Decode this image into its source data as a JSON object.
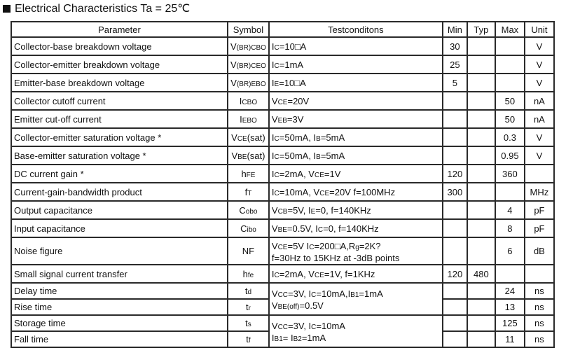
{
  "title": "Electrical Characteristics Ta = 25℃",
  "headers": [
    "Parameter",
    "Symbol",
    "Testconditons",
    "Min",
    "Typ",
    "Max",
    "Unit"
  ],
  "rows": [
    {
      "param": "Collector-base breakdown voltage",
      "sym": [
        [
          "V",
          0
        ],
        [
          "(BR)CBO",
          1
        ]
      ],
      "cond": [
        [
          [
            "I",
            0
          ],
          [
            "C",
            1
          ],
          [
            "=10□A",
            0
          ]
        ]
      ],
      "min": "30",
      "typ": "",
      "max": "",
      "unit": "V"
    },
    {
      "param": "Collector-emitter breakdown voltage",
      "sym": [
        [
          "V",
          0
        ],
        [
          "(BR)CEO",
          1
        ]
      ],
      "cond": [
        [
          [
            "I",
            0
          ],
          [
            "C",
            1
          ],
          [
            "=1mA",
            0
          ]
        ]
      ],
      "min": "25",
      "typ": "",
      "max": "",
      "unit": "V"
    },
    {
      "param": "Emitter-base breakdown voltage",
      "sym": [
        [
          "V",
          0
        ],
        [
          "(BR)EBO",
          1
        ]
      ],
      "cond": [
        [
          [
            "I",
            0
          ],
          [
            "E",
            1
          ],
          [
            "=10□A",
            0
          ]
        ]
      ],
      "min": "5",
      "typ": "",
      "max": "",
      "unit": "V"
    },
    {
      "param": "Collector cutoff current",
      "sym": [
        [
          "I",
          0
        ],
        [
          "CBO",
          1
        ]
      ],
      "cond": [
        [
          [
            "V",
            0
          ],
          [
            "CE",
            1
          ],
          [
            "=20V",
            0
          ]
        ]
      ],
      "min": "",
      "typ": "",
      "max": "50",
      "unit": "nA"
    },
    {
      "param": "Emitter cut-off current",
      "sym": [
        [
          "I",
          0
        ],
        [
          "EBO",
          1
        ]
      ],
      "cond": [
        [
          [
            "V",
            0
          ],
          [
            "EB",
            1
          ],
          [
            "=3V",
            0
          ]
        ]
      ],
      "min": "",
      "typ": "",
      "max": "50",
      "unit": "nA"
    },
    {
      "param": "Collector-emitter saturation voltage  *",
      "sym": [
        [
          "V",
          0
        ],
        [
          "CE",
          1
        ],
        [
          "(sat)",
          0
        ]
      ],
      "cond": [
        [
          [
            "I",
            0
          ],
          [
            "C",
            1
          ],
          [
            "=50mA, I",
            0
          ],
          [
            "B",
            1
          ],
          [
            "=5mA",
            0
          ]
        ]
      ],
      "min": "",
      "typ": "",
      "max": "0.3",
      "unit": "V"
    },
    {
      "param": "Base-emitter saturation voltage  *",
      "sym": [
        [
          "V",
          0
        ],
        [
          "BE",
          1
        ],
        [
          "(sat)",
          0
        ]
      ],
      "cond": [
        [
          [
            "I",
            0
          ],
          [
            "C",
            1
          ],
          [
            "=50mA, I",
            0
          ],
          [
            "B",
            1
          ],
          [
            "=5mA",
            0
          ]
        ]
      ],
      "min": "",
      "typ": "",
      "max": "0.95",
      "unit": "V"
    },
    {
      "param": "DC current gain  *",
      "sym": [
        [
          "h",
          0
        ],
        [
          "FE",
          1
        ]
      ],
      "cond": [
        [
          [
            " I",
            0
          ],
          [
            "C",
            1
          ],
          [
            "=2mA, V",
            0
          ],
          [
            "CE",
            1
          ],
          [
            "=1V",
            0
          ]
        ]
      ],
      "min": "120",
      "typ": "",
      "max": "360",
      "unit": ""
    },
    {
      "param": "Current-gain-bandwidth product",
      "sym": [
        [
          "f",
          0
        ],
        [
          "T",
          1
        ]
      ],
      "cond": [
        [
          [
            "I",
            0
          ],
          [
            "C",
            1
          ],
          [
            "=10mA, V",
            0
          ],
          [
            "CE",
            1
          ],
          [
            "=20V f=100MHz",
            0
          ]
        ]
      ],
      "min": "300",
      "typ": "",
      "max": "",
      "unit": "MHz"
    },
    {
      "param": "Output capacitance",
      "sym": [
        [
          "C",
          0
        ],
        [
          "obo",
          1
        ]
      ],
      "cond": [
        [
          [
            "V",
            0
          ],
          [
            "CB",
            1
          ],
          [
            "=5V, I",
            0
          ],
          [
            "E",
            1
          ],
          [
            "=0, f=140KHz",
            0
          ]
        ]
      ],
      "min": "",
      "typ": "",
      "max": "4",
      "unit": "pF"
    },
    {
      "param": "Input capacitance",
      "sym": [
        [
          "C",
          0
        ],
        [
          "ibo",
          1
        ]
      ],
      "cond": [
        [
          [
            "V",
            0
          ],
          [
            "BE",
            1
          ],
          [
            "=0.5V, I",
            0
          ],
          [
            "C",
            1
          ],
          [
            "=0, f=140KHz",
            0
          ]
        ]
      ],
      "min": "",
      "typ": "",
      "max": "8",
      "unit": "pF"
    },
    {
      "param": "Noise figure",
      "sym": [
        [
          "NF",
          0
        ]
      ],
      "cond": [
        [
          [
            "V",
            0
          ],
          [
            "CE",
            1
          ],
          [
            "=5V I",
            0
          ],
          [
            "C",
            1
          ],
          [
            "=200□A,R",
            0
          ],
          [
            "g",
            1
          ],
          [
            "=2K?",
            0
          ]
        ],
        [
          [
            "f=30Hz to 15KHz at -3dB points",
            0
          ]
        ]
      ],
      "min": "",
      "typ": "",
      "max": "6",
      "unit": "dB",
      "nf": true
    },
    {
      "param": "Small signal current transfer",
      "sym": [
        [
          "h",
          0
        ],
        [
          "fe",
          1
        ]
      ],
      "cond": [
        [
          [
            "I",
            0
          ],
          [
            "C",
            1
          ],
          [
            "=2mA, V",
            0
          ],
          [
            "CE",
            1
          ],
          [
            "=1V, f=1KHz",
            0
          ]
        ]
      ],
      "min": "120",
      "typ": "480",
      "max": "",
      "unit": ""
    },
    {
      "param": "Delay time",
      "sym": [
        [
          "t",
          0
        ],
        [
          "d",
          1
        ]
      ],
      "cond": [
        [
          [
            "V",
            0
          ],
          [
            "CC",
            1
          ],
          [
            "=3V, I",
            0
          ],
          [
            "C",
            1
          ],
          [
            "=10mA,I",
            0
          ],
          [
            "B1",
            1
          ],
          [
            "=1mA",
            0
          ]
        ],
        [
          [
            "V",
            0
          ],
          [
            "BE(off)",
            1
          ],
          [
            "=0.5V",
            0
          ]
        ]
      ],
      "span": 2,
      "min": "",
      "typ": "",
      "max": "24",
      "unit": "ns"
    },
    {
      "param": "Rise time",
      "sym": [
        [
          "t",
          0
        ],
        [
          "r",
          1
        ]
      ],
      "min": "",
      "typ": "",
      "max": "13",
      "unit": "ns"
    },
    {
      "param": "Storage time",
      "sym": [
        [
          "t",
          0
        ],
        [
          "s",
          1
        ]
      ],
      "cond": [
        [
          [
            "V",
            0
          ],
          [
            "CC",
            1
          ],
          [
            "=3V, I",
            0
          ],
          [
            "C",
            1
          ],
          [
            "=10mA",
            0
          ]
        ],
        [
          [
            "I",
            0
          ],
          [
            "B1",
            1
          ],
          [
            "= I",
            0
          ],
          [
            "B2",
            1
          ],
          [
            "=1mA",
            0
          ]
        ]
      ],
      "span": 2,
      "min": "",
      "typ": "",
      "max": "125",
      "unit": "ns"
    },
    {
      "param": "Fall time",
      "sym": [
        [
          "t",
          0
        ],
        [
          "f",
          1
        ]
      ],
      "min": "",
      "typ": "",
      "max": "11",
      "unit": "ns"
    }
  ]
}
